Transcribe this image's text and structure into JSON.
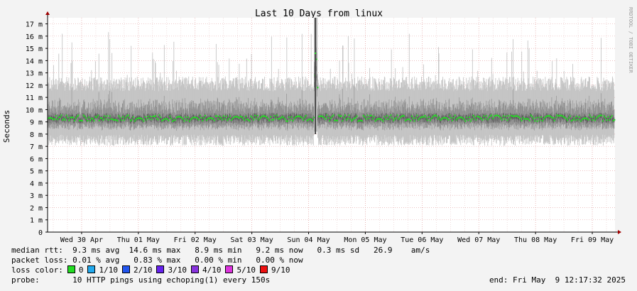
{
  "title": "Last 10 Days from linux",
  "side_credit": "RRDTOOL / TOBI OETIKER",
  "chart_data": {
    "type": "area",
    "title": "Last 10 Days from linux",
    "ylabel": "Seconds",
    "ylim": [
      0,
      17.5
    ],
    "y_ticks": [
      {
        "v": 0,
        "label": "0"
      },
      {
        "v": 1,
        "label": "1 m"
      },
      {
        "v": 2,
        "label": "2 m"
      },
      {
        "v": 3,
        "label": "3 m"
      },
      {
        "v": 4,
        "label": "4 m"
      },
      {
        "v": 5,
        "label": "5 m"
      },
      {
        "v": 6,
        "label": "6 m"
      },
      {
        "v": 7,
        "label": "7 m"
      },
      {
        "v": 8,
        "label": "8 m"
      },
      {
        "v": 9,
        "label": "9 m"
      },
      {
        "v": 10,
        "label": "10 m"
      },
      {
        "v": 11,
        "label": "11 m"
      },
      {
        "v": 12,
        "label": "12 m"
      },
      {
        "v": 13,
        "label": "13 m"
      },
      {
        "v": 14,
        "label": "14 m"
      },
      {
        "v": 15,
        "label": "15 m"
      },
      {
        "v": 16,
        "label": "16 m"
      },
      {
        "v": 17,
        "label": "17 m"
      }
    ],
    "xlim": [
      -0.6,
      9.4
    ],
    "x_ticks": [
      {
        "v": 0,
        "label": "Wed 30 Apr"
      },
      {
        "v": 1,
        "label": "Thu 01 May"
      },
      {
        "v": 2,
        "label": "Fri 02 May"
      },
      {
        "v": 3,
        "label": "Sat 03 May"
      },
      {
        "v": 4,
        "label": "Sun 04 May"
      },
      {
        "v": 5,
        "label": "Mon 05 May"
      },
      {
        "v": 6,
        "label": "Tue 06 May"
      },
      {
        "v": 7,
        "label": "Wed 07 May"
      },
      {
        "v": 8,
        "label": "Thu 08 May"
      },
      {
        "v": 9,
        "label": "Fri 09 May"
      }
    ],
    "x_unit": "days from Wed 30 Apr 00:00",
    "grid": true,
    "series": [
      {
        "name": "median rtt",
        "color": "#22dd22",
        "typical": 9.3,
        "avg": 9.3,
        "max": 14.6,
        "min": 8.9
      },
      {
        "name": "rtt spread",
        "color": "#b8b8b8",
        "typical_low": 7.5,
        "typical_high": 11.5,
        "max": 17.5
      }
    ],
    "spike": {
      "x": 4.12,
      "median": 14.6,
      "high": 17.5
    }
  },
  "stats": {
    "median_label": "median rtt:",
    "median_values": "9.3 ms avg  14.6 ms max   8.9 ms min   9.2 ms now   0.3 ms sd   26.9    am/s",
    "loss_label": "packet loss:",
    "loss_values": "0.01 % avg   0.83 % max   0.00 % min   0.00 % now",
    "color_label": "loss color:",
    "legend": [
      {
        "label": "0",
        "color": "#22dd22"
      },
      {
        "label": "1/10",
        "color": "#22aaee"
      },
      {
        "label": "2/10",
        "color": "#2255ee"
      },
      {
        "label": "3/10",
        "color": "#6622ee"
      },
      {
        "label": "4/10",
        "color": "#8833dd"
      },
      {
        "label": "5/10",
        "color": "#dd33dd"
      },
      {
        "label": "9/10",
        "color": "#ee1111"
      }
    ],
    "probe_label": "probe:",
    "probe_text": "10 HTTP pings using echoping(1) every 150s",
    "end_text": "end: Fri May  9 12:17:32 2025"
  }
}
